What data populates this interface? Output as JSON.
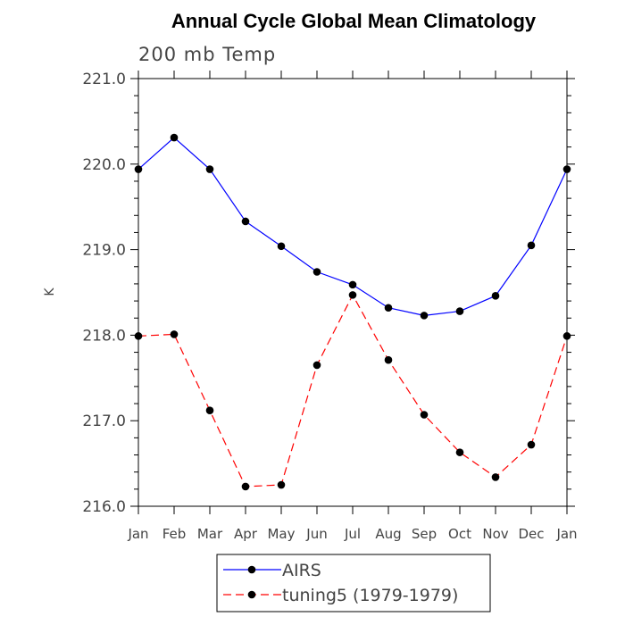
{
  "chart_data": {
    "type": "line",
    "title": "Annual Cycle Global Mean Climatology",
    "subtitle": "200 mb Temp",
    "xlabel": "",
    "ylabel": "K",
    "categories": [
      "Jan",
      "Feb",
      "Mar",
      "Apr",
      "May",
      "Jun",
      "Jul",
      "Aug",
      "Sep",
      "Oct",
      "Nov",
      "Dec",
      "Jan"
    ],
    "ylim": [
      216.0,
      221.0
    ],
    "yticks": [
      "216.0",
      "217.0",
      "218.0",
      "219.0",
      "220.0",
      "221.0"
    ],
    "series": [
      {
        "name": "AIRS",
        "color": "#0000ff",
        "dash": "solid",
        "values": [
          219.94,
          220.31,
          219.94,
          219.33,
          219.04,
          218.74,
          218.59,
          218.32,
          218.23,
          218.28,
          218.46,
          219.05,
          219.94
        ]
      },
      {
        "name": "tuning5 (1979-1979)",
        "color": "#ff0000",
        "dash": "dashed",
        "values": [
          217.99,
          218.01,
          217.12,
          216.23,
          216.25,
          217.65,
          218.47,
          217.71,
          217.07,
          216.63,
          216.34,
          216.72,
          217.99
        ]
      }
    ],
    "legend": {
      "position": "bottom-center"
    },
    "grid": false
  }
}
